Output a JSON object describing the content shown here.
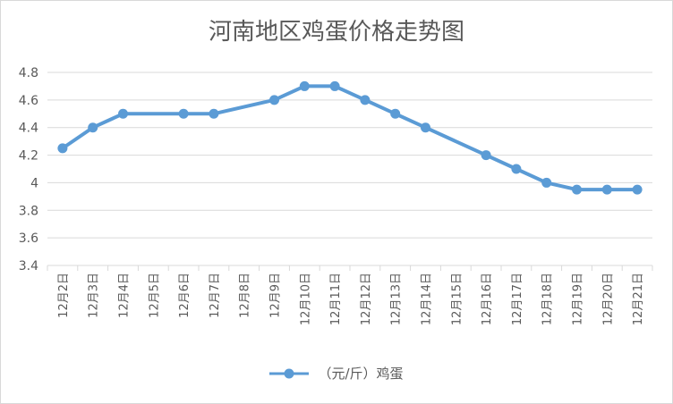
{
  "chart_data": {
    "type": "line",
    "title": "河南地区鸡蛋价格走势图",
    "xlabel": "",
    "ylabel": "",
    "categories": [
      "12月2日",
      "12月3日",
      "12月4日",
      "12月5日",
      "12月6日",
      "12月7日",
      "12月8日",
      "12月9日",
      "12月10日",
      "12月11日",
      "12月12日",
      "12月13日",
      "12月14日",
      "12月15日",
      "12月16日",
      "12月17日",
      "12月18日",
      "12月19日",
      "12月20日",
      "12月21日"
    ],
    "series": [
      {
        "name": "（元/斤）鸡蛋",
        "values": [
          4.25,
          4.4,
          4.5,
          null,
          4.5,
          4.5,
          null,
          4.6,
          4.7,
          4.7,
          4.6,
          4.5,
          4.4,
          null,
          4.2,
          4.1,
          4.0,
          3.95,
          3.95,
          3.95
        ]
      }
    ],
    "ylim": [
      3.4,
      4.8
    ],
    "yticks": [
      "3.4",
      "3.6",
      "3.8",
      "4",
      "4.2",
      "4.4",
      "4.6",
      "4.8"
    ],
    "grid": true,
    "legend_position": "bottom",
    "colors": {
      "line": "#5b9bd5",
      "grid": "#d9d9d9",
      "text": "#595959"
    }
  }
}
